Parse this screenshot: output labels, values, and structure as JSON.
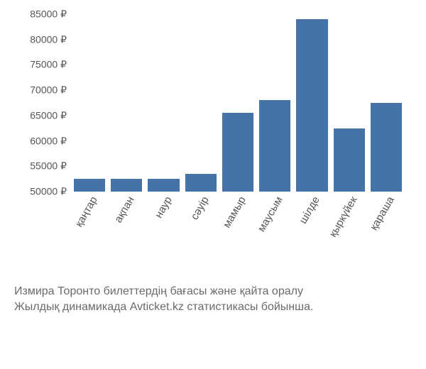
{
  "chart": {
    "type": "bar",
    "categories": [
      "қаңтар",
      "ақпан",
      "наур",
      "сәуір",
      "мамыр",
      "маусым",
      "шілде",
      "қыркүйек",
      "қараша"
    ],
    "values": [
      52500,
      52500,
      52500,
      53500,
      65500,
      68000,
      84000,
      62500,
      67500
    ],
    "bar_color": "#4573a7",
    "background_color": "#ffffff",
    "y_axis": {
      "min": 50000,
      "max": 85000,
      "ticks": [
        50000,
        55000,
        60000,
        65000,
        70000,
        75000,
        80000,
        85000
      ],
      "tick_labels": [
        "50000 ₽",
        "55000 ₽",
        "60000 ₽",
        "65000 ₽",
        "70000 ₽",
        "75000 ₽",
        "80000 ₽",
        "85000 ₽"
      ],
      "label_color": "#555555",
      "label_fontsize": 14
    },
    "x_axis": {
      "label_color": "#555555",
      "label_fontsize": 15,
      "rotation_deg": -60
    },
    "caption_lines": [
      "Измира Торонто билеттердің бағасы және қайта оралу",
      "Жылдық динамикада Avticket.kz статистикасы бойынша."
    ],
    "caption_color": "#6a6a6a",
    "caption_fontsize": 16
  }
}
